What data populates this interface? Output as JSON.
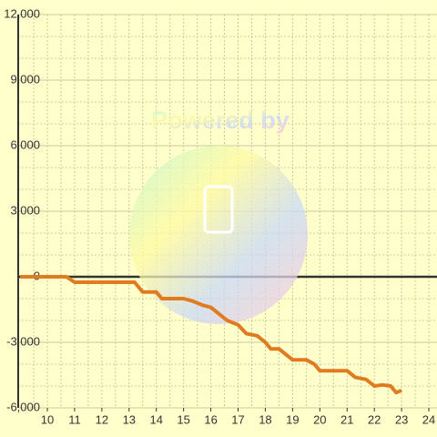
{
  "chart_data": {
    "type": "line",
    "watermark": "Powered by",
    "x": [
      9,
      10.7,
      11,
      13.2,
      13.5,
      14,
      14.2,
      15,
      15.3,
      15.7,
      16,
      16.3,
      16.6,
      17,
      17.3,
      17.7,
      18,
      18.2,
      18.5,
      18.8,
      19,
      19.5,
      19.8,
      20,
      21,
      21.3,
      21.7,
      22,
      22.3,
      22.6,
      22.8,
      23
    ],
    "series": [
      {
        "name": "value",
        "color": "#e07b20",
        "values": [
          0,
          0,
          -250,
          -250,
          -700,
          -700,
          -1000,
          -1000,
          -1100,
          -1300,
          -1400,
          -1700,
          -2000,
          -2200,
          -2600,
          -2700,
          -3000,
          -3300,
          -3300,
          -3600,
          -3800,
          -3800,
          -4000,
          -4300,
          -4300,
          -4600,
          -4700,
          -5000,
          -4950,
          -5000,
          -5300,
          -5200
        ]
      }
    ],
    "xlim": [
      8.93,
      24.3
    ],
    "xticks": [
      10,
      11,
      12,
      13,
      14,
      15,
      16,
      17,
      18,
      19,
      20,
      21,
      22,
      23,
      24
    ],
    "ylim": [
      -6000,
      12000
    ],
    "yticks": [
      {
        "value": -6000,
        "label": "-6,000"
      },
      {
        "value": -3000,
        "label": "-3,000"
      },
      0,
      {
        "value": 3000,
        "label": "3,000"
      },
      {
        "value": 6000,
        "label": "6,000"
      },
      {
        "value": 9000,
        "label": "9,000"
      },
      {
        "value": 12000,
        "label": "12,000"
      }
    ],
    "grid": true
  }
}
